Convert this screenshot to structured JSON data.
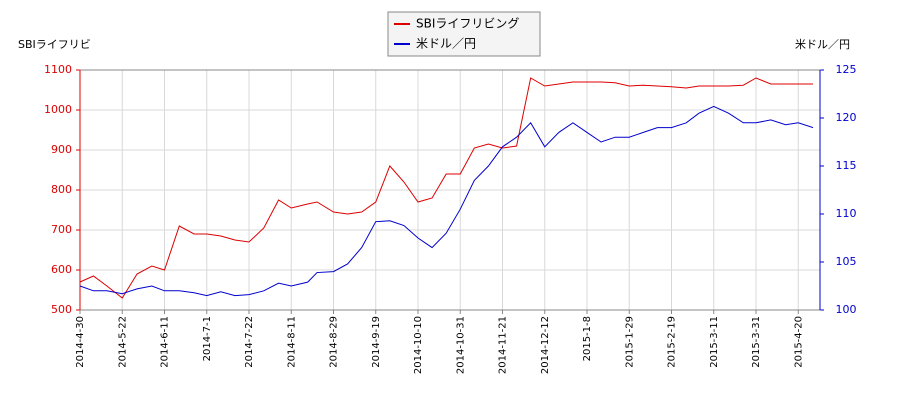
{
  "chart_data": {
    "type": "line",
    "ylabel": "SBIライフリビ",
    "y2label": "米ドル／円",
    "x": [
      "2014-4-30",
      "2014-5-7",
      "2014-5-14",
      "2014-5-22",
      "2014-5-29",
      "2014-6-5",
      "2014-6-11",
      "2014-6-18",
      "2014-6-25",
      "2014-7-1",
      "2014-7-8",
      "2014-7-15",
      "2014-7-22",
      "2014-7-29",
      "2014-8-5",
      "2014-8-11",
      "2014-8-18",
      "2014-8-22",
      "2014-8-29",
      "2014-9-5",
      "2014-9-12",
      "2014-9-19",
      "2014-9-26",
      "2014-10-3",
      "2014-10-10",
      "2014-10-17",
      "2014-10-24",
      "2014-10-31",
      "2014-11-7",
      "2014-11-14",
      "2014-11-21",
      "2014-11-28",
      "2014-12-5",
      "2014-12-12",
      "2014-12-21",
      "2014-12-30",
      "2015-1-8",
      "2015-1-15",
      "2015-1-22",
      "2015-1-29",
      "2015-2-5",
      "2015-2-12",
      "2015-2-19",
      "2015-2-26",
      "2015-3-4",
      "2015-3-11",
      "2015-3-18",
      "2015-3-25",
      "2015-3-31",
      "2015-4-7",
      "2015-4-14",
      "2015-4-20",
      "2015-4-27"
    ],
    "series": [
      {
        "name": "SBIライフリビング",
        "color": "#dd0000",
        "axis": "y",
        "values": [
          570,
          585,
          560,
          530,
          590,
          610,
          600,
          710,
          690,
          690,
          685,
          675,
          670,
          705,
          775,
          755,
          765,
          770,
          745,
          740,
          745,
          770,
          860,
          820,
          770,
          780,
          840,
          840,
          905,
          915,
          905,
          910,
          1080,
          1060,
          1065,
          1070,
          1070,
          1070,
          1068,
          1060,
          1062,
          1060,
          1058,
          1055,
          1060,
          1060,
          1060,
          1062,
          1080,
          1065,
          1065,
          1065,
          1065
        ]
      },
      {
        "name": "米ドル／円",
        "color": "#0000cc",
        "axis": "y2",
        "values": [
          102.5,
          102,
          102,
          101.7,
          102.2,
          102.5,
          102,
          102,
          101.8,
          101.5,
          101.9,
          101.5,
          101.6,
          102,
          102.8,
          102.5,
          102.9,
          103.9,
          104,
          104.8,
          106.5,
          109.2,
          109.3,
          108.8,
          107.5,
          106.5,
          108,
          110.5,
          113.5,
          115,
          117,
          118,
          119.5,
          117,
          118.5,
          119.5,
          118.5,
          117.5,
          118,
          118,
          118.5,
          119,
          119,
          119.5,
          120.5,
          121.2,
          120.5,
          119.5,
          119.5,
          119.8,
          119.3,
          119.5,
          119
        ]
      }
    ],
    "ylim": [
      500,
      1100
    ],
    "yticks": [
      500,
      600,
      700,
      800,
      900,
      1000,
      1100
    ],
    "y2lim": [
      100,
      125
    ],
    "y2ticks": [
      100,
      105,
      110,
      115,
      120,
      125
    ],
    "xticks": [
      "2014-4-30",
      "2014-5-22",
      "2014-6-11",
      "2014-7-1",
      "2014-7-22",
      "2014-8-11",
      "2014-8-29",
      "2014-9-19",
      "2014-10-10",
      "2014-10-31",
      "2014-11-21",
      "2014-12-12",
      "2015-1-8",
      "2015-1-29",
      "2015-2-19",
      "2015-3-11",
      "2015-3-31",
      "2015-4-20"
    ],
    "grid": true
  }
}
